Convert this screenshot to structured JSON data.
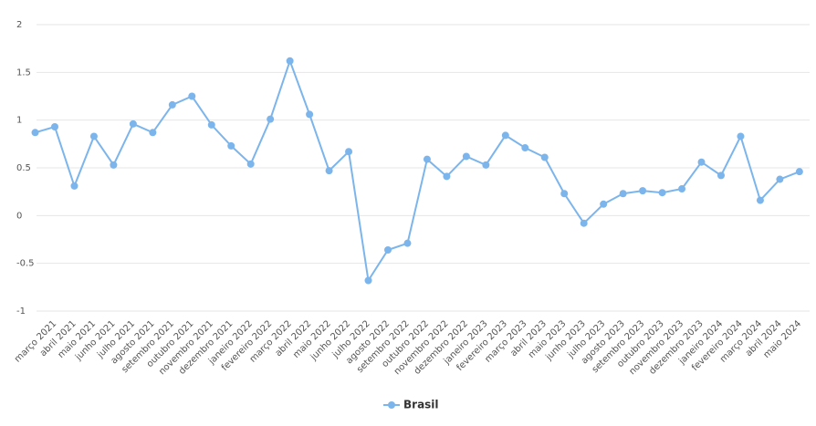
{
  "chart_data": {
    "type": "line",
    "categories": [
      null,
      "março 2021",
      "abril 2021",
      "maio 2021",
      "junho 2021",
      "julho 2021",
      "agosto 2021",
      "setembro 2021",
      "outubro 2021",
      "novembro 2021",
      "dezembro 2021",
      "janeiro 2022",
      "fevereiro 2022",
      "março 2022",
      "abril 2022",
      "maio 2022",
      "junho 2022",
      "julho 2022",
      "agosto 2022",
      "setembro 2022",
      "outubro 2022",
      "novembro 2022",
      "dezembro 2022",
      "janeiro 2023",
      "fevereiro 2023",
      "março 2023",
      "abril 2023",
      "maio 2023",
      "junho 2023",
      "julho 2023",
      "agosto 2023",
      "setembro 2023",
      "outubro 2023",
      "novembro 2023",
      "dezembro 2023",
      "janeiro 2024",
      "fevereiro 2024",
      "março 2024",
      "abril 2024",
      "maio 2024"
    ],
    "series": [
      {
        "name": "Brasil",
        "color": "#7cb5ec",
        "values": [
          0.87,
          0.93,
          0.31,
          0.83,
          0.53,
          0.96,
          0.87,
          1.16,
          1.25,
          0.95,
          0.73,
          0.54,
          1.01,
          1.62,
          1.06,
          0.47,
          0.67,
          -0.68,
          -0.36,
          -0.29,
          0.59,
          0.41,
          0.62,
          0.53,
          0.84,
          0.71,
          0.61,
          0.23,
          -0.08,
          0.12,
          0.23,
          0.26,
          0.24,
          0.28,
          0.56,
          0.42,
          0.83,
          0.16,
          0.38,
          0.46
        ]
      }
    ],
    "ylim": [
      -1,
      2
    ],
    "yticks": [
      -1,
      -0.5,
      0,
      0.5,
      1,
      1.5,
      2
    ],
    "grid": true,
    "legend": "bottom"
  }
}
